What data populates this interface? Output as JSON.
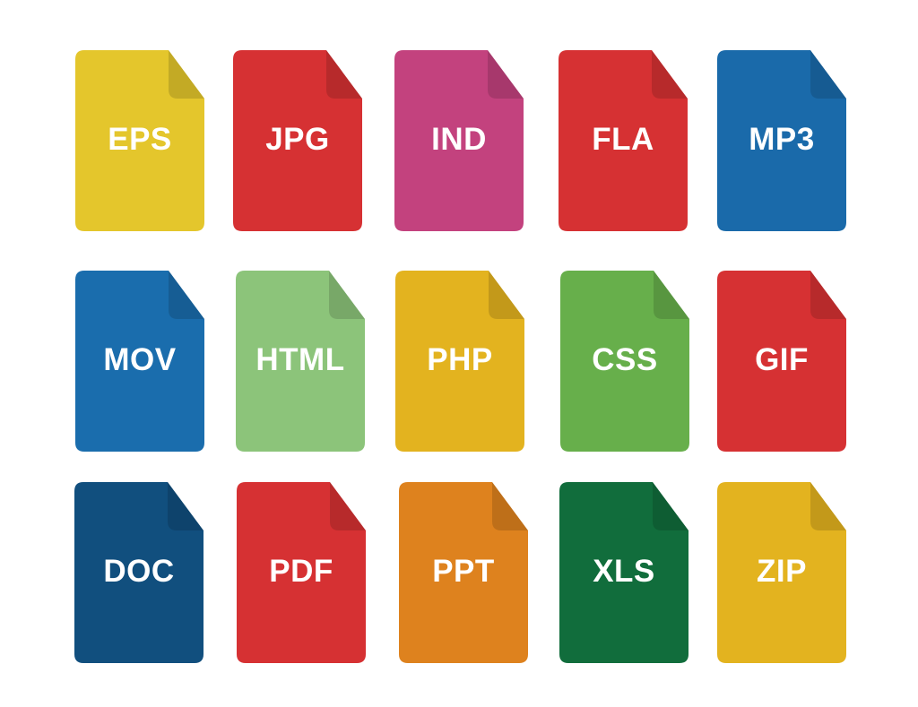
{
  "icons": [
    {
      "label": "EPS",
      "color": "#E4C62C"
    },
    {
      "label": "JPG",
      "color": "#D63133"
    },
    {
      "label": "IND",
      "color": "#C3427E"
    },
    {
      "label": "FLA",
      "color": "#D63133"
    },
    {
      "label": "MP3",
      "color": "#1A6AAA"
    },
    {
      "label": "MOV",
      "color": "#1A6DAD"
    },
    {
      "label": "HTML",
      "color": "#8CC47A"
    },
    {
      "label": "PHP",
      "color": "#E3B31F"
    },
    {
      "label": "CSS",
      "color": "#67AF4B"
    },
    {
      "label": "GIF",
      "color": "#D63133"
    },
    {
      "label": "DOC",
      "color": "#114F7E"
    },
    {
      "label": "PDF",
      "color": "#D63133"
    },
    {
      "label": "PPT",
      "color": "#DE821E"
    },
    {
      "label": "XLS",
      "color": "#116D3C"
    },
    {
      "label": "ZIP",
      "color": "#E3B31F"
    }
  ]
}
